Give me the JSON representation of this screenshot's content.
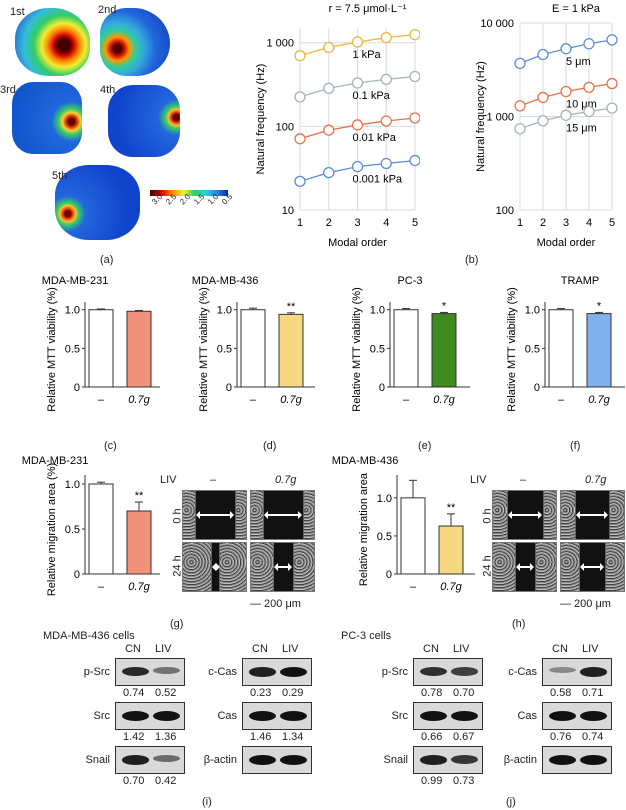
{
  "panel_a": {
    "label": "(a)",
    "modes": [
      "1st",
      "2nd",
      "3rd",
      "4th",
      "5th"
    ],
    "colorbar_ticks": [
      "3.0",
      "2.5",
      "2.0",
      "1.5",
      "1.0",
      "0.5"
    ]
  },
  "panel_b_label": "(b)",
  "panel_c_label": "(c)",
  "panel_d_label": "(d)",
  "panel_e_label": "(e)",
  "panel_f_label": "(f)",
  "panel_g_label": "(g)",
  "panel_h_label": "(h)",
  "panel_i_label": "(i)",
  "panel_j_label": "(j)",
  "chart_data": [
    {
      "id": "b1",
      "type": "line",
      "title": "r = 7.5 μmol·L⁻¹",
      "xlabel": "Modal order",
      "ylabel": "Natural frequency (Hz)",
      "yscale": "log",
      "ylim": [
        10,
        1500
      ],
      "x": [
        1,
        2,
        3,
        4,
        5
      ],
      "xticks": [
        "1",
        "2",
        "3",
        "4",
        "5"
      ],
      "yticks": [
        {
          "v": 10,
          "t": "10"
        },
        {
          "v": 100,
          "t": "100"
        },
        {
          "v": 1000,
          "t": "1 000"
        }
      ],
      "series": [
        {
          "name": "1 kPa",
          "color": "#f0b43c",
          "values": [
            700,
            880,
            1020,
            1150,
            1250
          ]
        },
        {
          "name": "0.1 kPa",
          "color": "#a8b4b4",
          "values": [
            225,
            285,
            330,
            365,
            395
          ]
        },
        {
          "name": "0.01 kPa",
          "color": "#e8734a",
          "values": [
            71,
            90,
            104,
            116,
            126
          ]
        },
        {
          "name": "0.001 kPa",
          "color": "#5b8fd9",
          "values": [
            22,
            28,
            33,
            36,
            39
          ]
        }
      ]
    },
    {
      "id": "b2",
      "type": "line",
      "title": "E = 1 kPa",
      "xlabel": "Modal order",
      "ylabel": "Natural frequency (Hz)",
      "yscale": "log",
      "ylim": [
        100,
        10000
      ],
      "x": [
        1,
        2,
        3,
        4,
        5
      ],
      "xticks": [
        "1",
        "2",
        "3",
        "4",
        "5"
      ],
      "yticks": [
        {
          "v": 100,
          "t": "100"
        },
        {
          "v": 1000,
          "t": "1 000"
        },
        {
          "v": 10000,
          "t": "10 000"
        }
      ],
      "series": [
        {
          "name": "5 μm",
          "color": "#5b8fd9",
          "values": [
            3700,
            4600,
            5300,
            6000,
            6600
          ]
        },
        {
          "name": "10 μm",
          "color": "#e8734a",
          "values": [
            1300,
            1600,
            1850,
            2050,
            2250
          ]
        },
        {
          "name": "15 μm",
          "color": "#a8b4b4",
          "values": [
            740,
            900,
            1030,
            1130,
            1230
          ]
        }
      ]
    },
    {
      "id": "c",
      "type": "bar",
      "title": "MDA-MB-231",
      "ylabel": "Relative MTT viability (%)",
      "ylim": [
        0,
        1.1
      ],
      "yticks": [
        "0",
        "0.5",
        "1.0"
      ],
      "categories": [
        "–",
        "0.7g"
      ],
      "values": [
        1.0,
        0.98
      ],
      "errors": [
        0.01,
        0.01
      ],
      "colors": [
        "#ffffff",
        "#f0937a"
      ],
      "sig": [
        "",
        ""
      ]
    },
    {
      "id": "d",
      "type": "bar",
      "title": "MDA-MB-436",
      "ylabel": "Relative MTT viability (%)",
      "ylim": [
        0,
        1.1
      ],
      "yticks": [
        "0",
        "0.5",
        "1.0"
      ],
      "categories": [
        "–",
        "0.7g"
      ],
      "values": [
        1.0,
        0.94
      ],
      "errors": [
        0.02,
        0.02
      ],
      "colors": [
        "#ffffff",
        "#f7d882"
      ],
      "sig": [
        "",
        "**"
      ]
    },
    {
      "id": "e",
      "type": "bar",
      "title": "PC-3",
      "ylabel": "Relative MTT viability (%)",
      "ylim": [
        0,
        1.1
      ],
      "yticks": [
        "0",
        "0.5",
        "1.0"
      ],
      "categories": [
        "–",
        "0.7g"
      ],
      "values": [
        1.0,
        0.95
      ],
      "errors": [
        0.015,
        0.015
      ],
      "colors": [
        "#ffffff",
        "#3e8a1e"
      ],
      "sig": [
        "",
        "*"
      ]
    },
    {
      "id": "f",
      "type": "bar",
      "title": "TRAMP",
      "ylabel": "Relative MTT viability (%)",
      "ylim": [
        0,
        1.1
      ],
      "yticks": [
        "0",
        "0.5",
        "1.0"
      ],
      "categories": [
        "–",
        "0.7g"
      ],
      "values": [
        1.0,
        0.95
      ],
      "errors": [
        0.015,
        0.015
      ],
      "colors": [
        "#ffffff",
        "#82b2ee"
      ],
      "sig": [
        "",
        "*"
      ]
    },
    {
      "id": "g",
      "type": "bar",
      "title": "MDA-MB-231",
      "ylabel": "Relative migration area (%)",
      "ylim": [
        0,
        1.1
      ],
      "yticks": [
        "0",
        "0.5",
        "1.0"
      ],
      "categories": [
        "–",
        "0.7g"
      ],
      "values": [
        1.0,
        0.7
      ],
      "errors": [
        0.02,
        0.1
      ],
      "colors": [
        "#ffffff",
        "#f0937a"
      ],
      "sig": [
        "",
        "**"
      ]
    },
    {
      "id": "h",
      "type": "bar",
      "title": "MDA-MB-436",
      "ylabel": "Relative migration area",
      "ylim": [
        0,
        1.3
      ],
      "yticks": [
        "0",
        "0.5",
        "1.0"
      ],
      "categories": [
        "–",
        "0.7g"
      ],
      "values": [
        1.0,
        0.63
      ],
      "errors": [
        0.23,
        0.16
      ],
      "colors": [
        "#ffffff",
        "#f7d882"
      ],
      "sig": [
        "",
        "**"
      ]
    }
  ],
  "migration_g": {
    "liv": "LIV",
    "cols": [
      "–",
      "0.7g"
    ],
    "rows": [
      "0 h",
      "24 h"
    ],
    "scale": "200 μm"
  },
  "migration_h": {
    "liv": "LIV",
    "cols": [
      "–",
      "0.7g"
    ],
    "rows": [
      "0 h",
      "24 h"
    ],
    "scale": "200 μm"
  },
  "western_i": {
    "title": "MDA-MB-436 cells",
    "cols": [
      "CN",
      "LIV"
    ],
    "left": [
      {
        "name": "p-Src",
        "vals": [
          "0.74",
          "0.52"
        ],
        "int": [
          0.85,
          0.35
        ]
      },
      {
        "name": "Src",
        "vals": [
          "1.42",
          "1.36"
        ],
        "int": [
          1,
          1
        ]
      },
      {
        "name": "Snail",
        "vals": [
          "0.70",
          "0.42"
        ],
        "int": [
          0.9,
          0.4
        ]
      }
    ],
    "right": [
      {
        "name": "c-Cas",
        "vals": [
          "0.23",
          "0.29"
        ],
        "int": [
          0.9,
          1
        ]
      },
      {
        "name": "Cas",
        "vals": [
          "1.46",
          "1.34"
        ],
        "int": [
          1,
          1
        ]
      },
      {
        "name": "β-actin",
        "vals": [],
        "int": [
          1,
          1
        ]
      }
    ]
  },
  "western_j": {
    "title": "PC-3 cells",
    "cols": [
      "CN",
      "LIV"
    ],
    "left": [
      {
        "name": "p-Src",
        "vals": [
          "0.78",
          "0.70"
        ],
        "int": [
          0.8,
          0.7
        ]
      },
      {
        "name": "Src",
        "vals": [
          "0.66",
          "0.67"
        ],
        "int": [
          1,
          1
        ]
      },
      {
        "name": "Snail",
        "vals": [
          "0.99",
          "0.73"
        ],
        "int": [
          0.9,
          0.75
        ]
      }
    ],
    "right": [
      {
        "name": "c-Cas",
        "vals": [
          "0.58",
          "0.71"
        ],
        "int": [
          0.2,
          0.9
        ]
      },
      {
        "name": "Cas",
        "vals": [
          "0.76",
          "0.74"
        ],
        "int": [
          1,
          1
        ]
      },
      {
        "name": "β-actin",
        "vals": [],
        "int": [
          1,
          1
        ]
      }
    ]
  }
}
